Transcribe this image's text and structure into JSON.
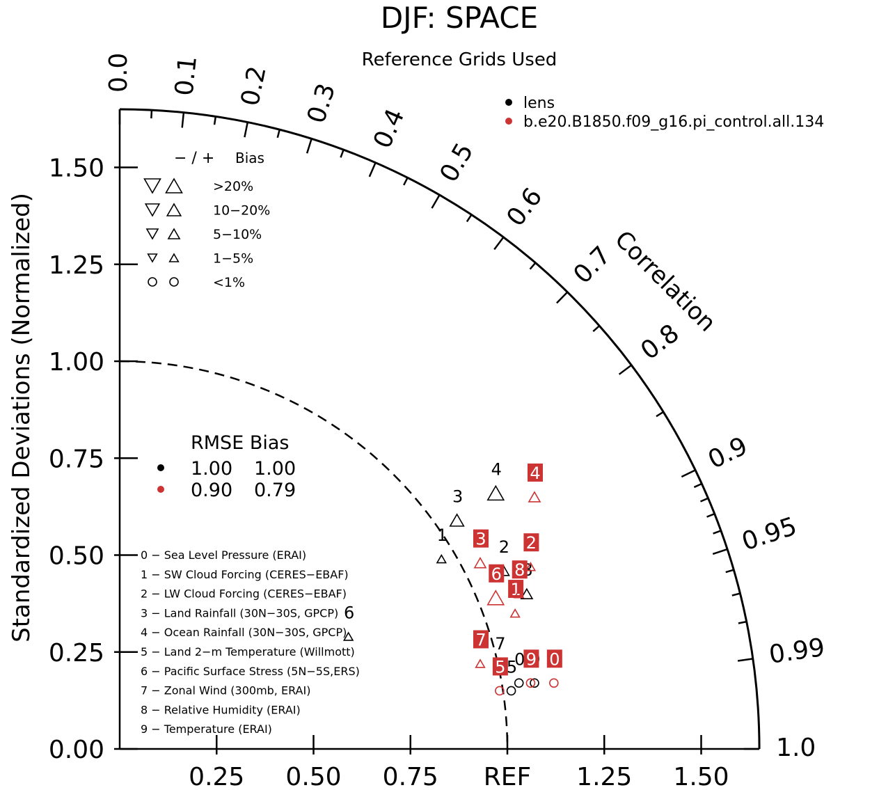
{
  "chart_data": {
    "type": "taylor",
    "title": "DJF: SPACE",
    "subtitle": "Reference Grids Used",
    "ylabel": "Standardized Deviations (Normalized)",
    "arc_label": "Correlation",
    "ref_label": "REF",
    "sd_range": [
      0,
      1.65
    ],
    "x_ticks": [
      "0.25",
      "0.50",
      "0.75",
      "REF",
      "1.25",
      "1.50"
    ],
    "x_tick_values": [
      0.25,
      0.5,
      0.75,
      1.0,
      1.25,
      1.5
    ],
    "y_ticks": [
      "0.00",
      "0.25",
      "0.50",
      "0.75",
      "1.00",
      "1.25",
      "1.50"
    ],
    "y_tick_values": [
      0,
      0.25,
      0.5,
      0.75,
      1.0,
      1.25,
      1.5
    ],
    "corr_labels": [
      "0.0",
      "0.1",
      "0.2",
      "0.3",
      "0.4",
      "0.5",
      "0.6",
      "0.7",
      "0.8",
      "0.9",
      "0.95",
      "0.99",
      "1.0"
    ],
    "corr_label_values": [
      0.0,
      0.1,
      0.2,
      0.3,
      0.4,
      0.5,
      0.6,
      0.7,
      0.8,
      0.9,
      0.95,
      0.99,
      1.0
    ],
    "corr_minor_ticks": [
      0.05,
      0.15,
      0.25,
      0.35,
      0.45,
      0.55,
      0.65,
      0.75,
      0.85,
      0.91,
      0.92,
      0.93,
      0.94,
      0.96,
      0.97,
      0.98
    ],
    "ref_arc_sd": 1.0,
    "series": [
      {
        "name": "lens",
        "color": "#000000",
        "points": [
          {
            "id": "0",
            "x": 1.03,
            "y": 0.17,
            "marker": "circle",
            "size": 1
          },
          {
            "id": "1",
            "x": 0.83,
            "y": 0.49,
            "marker": "up",
            "size": 1
          },
          {
            "id": "2",
            "x": 0.99,
            "y": 0.46,
            "marker": "up",
            "size": 2
          },
          {
            "id": "3",
            "x": 0.87,
            "y": 0.59,
            "marker": "up",
            "size": 3
          },
          {
            "id": "4",
            "x": 0.97,
            "y": 0.66,
            "marker": "up",
            "size": 4
          },
          {
            "id": "5",
            "x": 1.01,
            "y": 0.15,
            "marker": "circle",
            "size": 1
          },
          {
            "id": "6",
            "x": 0.59,
            "y": 0.29,
            "marker": "up",
            "size": 1
          },
          {
            "id": "7",
            "x": 0.98,
            "y": 0.21,
            "marker": "down",
            "size": 1
          },
          {
            "id": "8",
            "x": 1.05,
            "y": 0.4,
            "marker": "up",
            "size": 2
          },
          {
            "id": "9",
            "x": 1.07,
            "y": 0.17,
            "marker": "circle",
            "size": 1
          }
        ]
      },
      {
        "name": "b.e20.B1850.f09_g16.pi_control.all.134",
        "color": "#cc3333",
        "points": [
          {
            "id": "0",
            "x": 1.12,
            "y": 0.17,
            "marker": "circle",
            "size": 1
          },
          {
            "id": "1",
            "x": 1.02,
            "y": 0.35,
            "marker": "up",
            "size": 1
          },
          {
            "id": "2",
            "x": 1.06,
            "y": 0.47,
            "marker": "up",
            "size": 1
          },
          {
            "id": "3",
            "x": 0.93,
            "y": 0.48,
            "marker": "up",
            "size": 2
          },
          {
            "id": "4",
            "x": 1.07,
            "y": 0.65,
            "marker": "up",
            "size": 2
          },
          {
            "id": "5",
            "x": 0.98,
            "y": 0.15,
            "marker": "circle",
            "size": 1
          },
          {
            "id": "6",
            "x": 0.97,
            "y": 0.39,
            "marker": "up",
            "size": 4
          },
          {
            "id": "7",
            "x": 0.93,
            "y": 0.22,
            "marker": "up",
            "size": 1
          },
          {
            "id": "8",
            "x": 1.03,
            "y": 0.4,
            "marker": "up",
            "size": 1
          },
          {
            "id": "9",
            "x": 1.06,
            "y": 0.17,
            "marker": "circle",
            "size": 1
          }
        ]
      }
    ],
    "bias_legend": {
      "header_signs": "− / +",
      "header_label": "Bias",
      "rows": [
        {
          "label": ">20%",
          "size": 4
        },
        {
          "label": "10−20%",
          "size": 3
        },
        {
          "label": "5−10%",
          "size": 2
        },
        {
          "label": "1−5%",
          "size": 1
        },
        {
          "label": "<1%",
          "size": 0
        }
      ]
    },
    "rmse_table": {
      "header": "RMSE Bias",
      "rows": [
        {
          "color": "#000000",
          "rmse": "1.00",
          "bias": "1.00"
        },
        {
          "color": "#cc3333",
          "rmse": "0.90",
          "bias": "0.79"
        }
      ]
    },
    "variables": [
      "0 − Sea Level Pressure (ERAI)",
      "1 − SW Cloud Forcing (CERES−EBAF)",
      "2 − LW Cloud Forcing (CERES−EBAF)",
      "3 − Land Rainfall (30N−30S, GPCP)",
      "4 − Ocean Rainfall (30N−30S, GPCP)",
      "5 − Land 2−m Temperature (Willmott)",
      "6 − Pacific Surface Stress (5N−5S,ERS)",
      "7 − Zonal Wind (300mb, ERAI)",
      "8 − Relative Humidity (ERAI)",
      "9 − Temperature (ERAI)"
    ]
  }
}
